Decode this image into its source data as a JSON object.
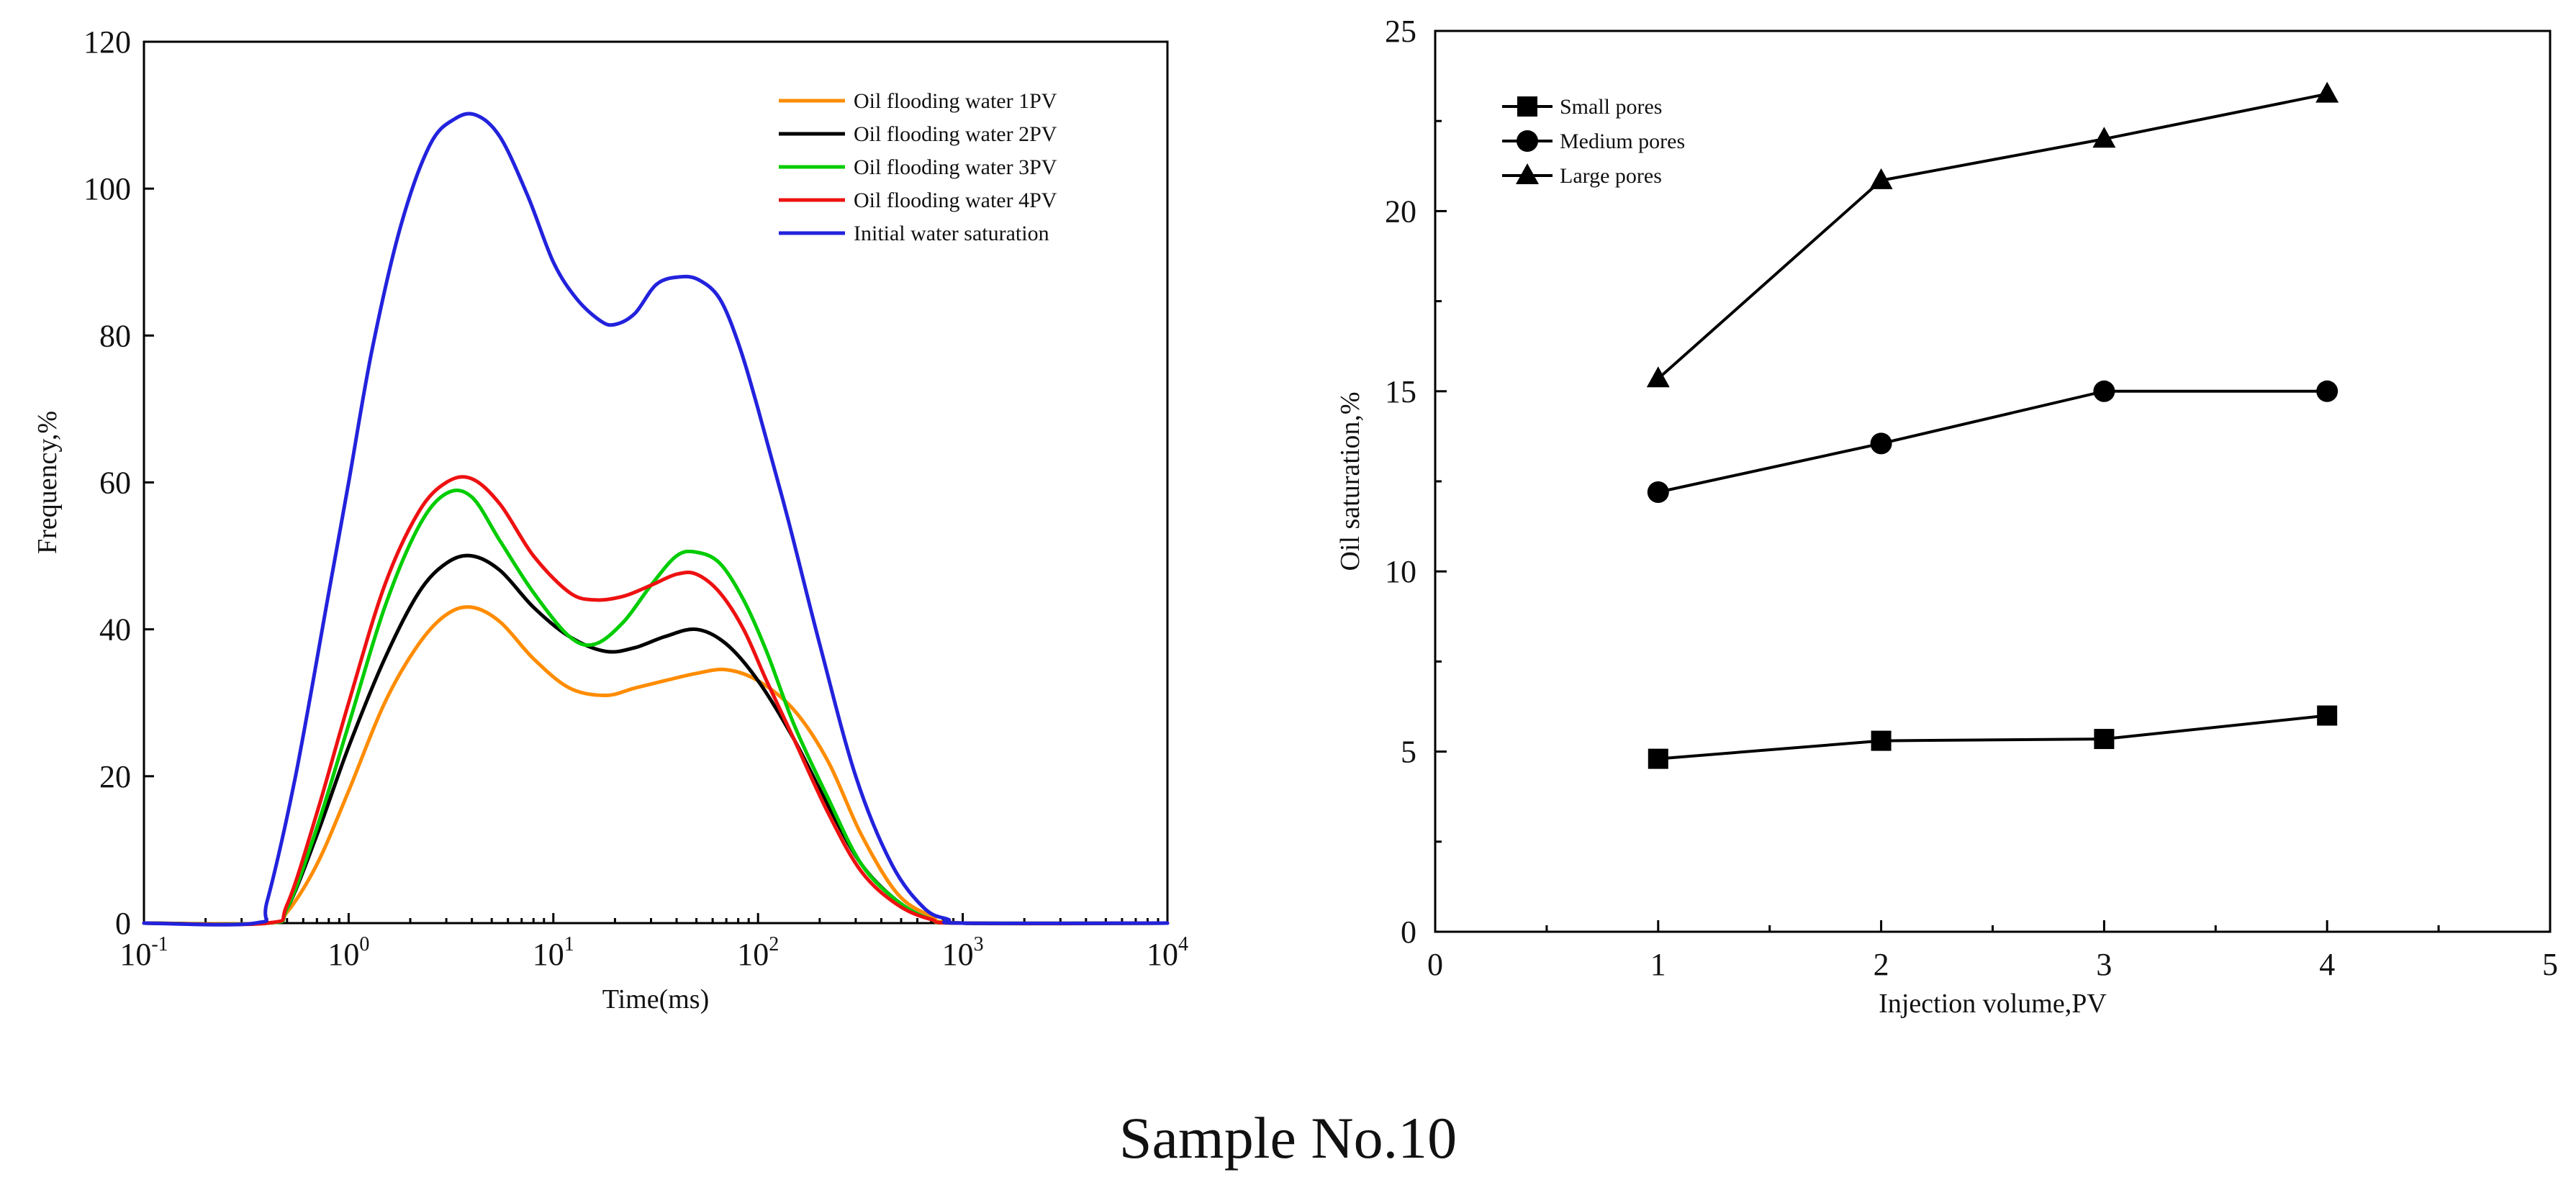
{
  "caption": "Sample No.10",
  "chart_data": [
    {
      "type": "line",
      "xscale": "log",
      "xlabel": "Time(ms)",
      "ylabel": "Frequency,%",
      "xlim": [
        0.1,
        10000
      ],
      "ylim": [
        0,
        120
      ],
      "yticks": [
        0,
        20,
        40,
        60,
        80,
        100,
        120
      ],
      "xticks": [
        {
          "value": 0.1,
          "base": "10",
          "exp": "-1"
        },
        {
          "value": 1,
          "base": "10",
          "exp": "0"
        },
        {
          "value": 10,
          "base": "10",
          "exp": "1"
        },
        {
          "value": 100,
          "base": "10",
          "exp": "2"
        },
        {
          "value": 1000,
          "base": "10",
          "exp": "3"
        },
        {
          "value": 10000,
          "base": "10",
          "exp": "4"
        }
      ],
      "legend_position": "top-right",
      "series": [
        {
          "name": "Oil flooding water 1PV",
          "color": "#ff8c00",
          "x": [
            0.1,
            0.4,
            0.5,
            0.7,
            1.0,
            1.5,
            2.2,
            3.0,
            4.0,
            5.5,
            8,
            12,
            18,
            25,
            35,
            50,
            70,
            100,
            150,
            220,
            320,
            480,
            700,
            1000,
            10000
          ],
          "y": [
            0,
            0,
            1.5,
            8,
            18,
            30,
            38,
            42,
            43,
            41,
            36,
            32,
            31,
            32,
            33,
            34,
            34.5,
            33,
            29,
            22,
            12,
            4,
            1,
            0,
            0
          ]
        },
        {
          "name": "Oil flooding water 2PV",
          "color": "#000000",
          "x": [
            0.1,
            0.4,
            0.5,
            0.7,
            1.0,
            1.5,
            2.2,
            3.0,
            4.0,
            5.5,
            8,
            12,
            18,
            25,
            35,
            50,
            70,
            100,
            150,
            220,
            320,
            480,
            700,
            1000,
            10000
          ],
          "y": [
            0,
            0,
            2,
            12,
            24,
            36,
            45,
            49,
            50,
            48,
            43,
            39,
            37,
            37.5,
            39,
            40,
            38,
            33,
            25,
            16,
            8,
            3,
            0.5,
            0,
            0
          ]
        },
        {
          "name": "Oil flooding water 3PV",
          "color": "#00cc00",
          "x": [
            0.1,
            0.4,
            0.5,
            0.7,
            1.0,
            1.5,
            2.2,
            3.0,
            4.0,
            5.5,
            8,
            12,
            16,
            22,
            30,
            40,
            50,
            65,
            85,
            110,
            150,
            220,
            320,
            480,
            700,
            1000,
            10000
          ],
          "y": [
            0,
            0,
            2,
            13,
            27,
            43,
            54,
            58.5,
            58,
            52,
            45,
            39,
            38,
            41,
            46,
            50,
            50.5,
            49,
            44,
            37,
            27,
            17,
            8,
            3,
            0.5,
            0,
            0
          ]
        },
        {
          "name": "Oil flooding water 4PV",
          "color": "#ee1111",
          "x": [
            0.1,
            0.4,
            0.5,
            0.7,
            1.0,
            1.5,
            2.2,
            3.0,
            4.0,
            5.5,
            8,
            12,
            16,
            22,
            30,
            40,
            50,
            65,
            85,
            110,
            150,
            220,
            320,
            480,
            700,
            1000,
            10000
          ],
          "y": [
            0,
            0,
            2.5,
            15,
            30,
            46,
            56,
            60,
            60.5,
            57,
            50,
            45,
            44,
            44.5,
            46,
            47.5,
            47.5,
            45,
            40,
            33,
            25,
            15,
            7,
            2.5,
            0.5,
            0,
            0
          ]
        },
        {
          "name": "Initial water saturation",
          "color": "#2222dd",
          "x": [
            0.1,
            0.35,
            0.4,
            0.55,
            0.8,
            1.0,
            1.3,
            1.8,
            2.5,
            3.3,
            4.2,
            5.5,
            7.5,
            10,
            13,
            17,
            20,
            25,
            32,
            42,
            52,
            65,
            80,
            100,
            140,
            200,
            300,
            450,
            650,
            850,
            1000,
            10000
          ],
          "y": [
            0,
            0,
            3,
            20,
            45,
            60,
            78,
            95,
            106,
            109.5,
            110,
            107,
            99,
            90,
            85,
            82,
            81.5,
            83,
            87,
            88,
            87.5,
            85,
            79,
            70,
            55,
            38,
            20,
            8,
            2,
            0.5,
            0,
            0
          ]
        }
      ]
    },
    {
      "type": "line",
      "xlabel": "Injection volume,PV",
      "ylabel": "Oil saturation,%",
      "xlim": [
        0,
        5
      ],
      "ylim": [
        0,
        25
      ],
      "xticks": [
        0,
        1,
        2,
        3,
        4,
        5
      ],
      "yticks": [
        0,
        5,
        10,
        15,
        20,
        25
      ],
      "legend_position": "top-left",
      "series": [
        {
          "name": "Small pores",
          "marker": "square",
          "x": [
            1,
            2,
            3,
            4
          ],
          "y": [
            4.8,
            5.3,
            5.35,
            6.0
          ]
        },
        {
          "name": "Medium pores",
          "marker": "circle",
          "x": [
            1,
            2,
            3,
            4
          ],
          "y": [
            12.2,
            13.55,
            15.0,
            15.0
          ]
        },
        {
          "name": "Large pores",
          "marker": "triangle",
          "x": [
            1,
            2,
            3,
            4
          ],
          "y": [
            15.35,
            20.85,
            22.0,
            23.25
          ]
        }
      ]
    }
  ]
}
